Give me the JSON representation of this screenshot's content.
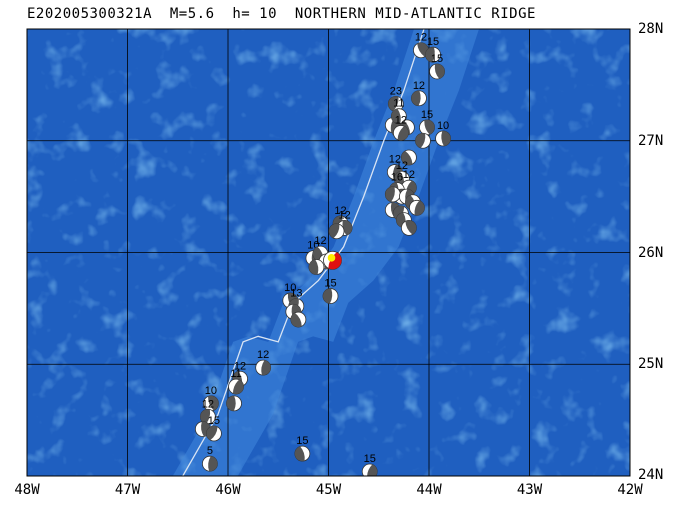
{
  "title": "E202005300321A  M=5.6  h= 10  NORTHERN MID-ATLANTIC RIDGE",
  "map": {
    "lon_range": [
      -48,
      -42
    ],
    "lat_range": [
      24,
      28
    ],
    "lon_labels": [
      "48W",
      "47W",
      "46W",
      "45W",
      "44W",
      "43W",
      "42W"
    ],
    "lat_labels": [
      "28N",
      "27N",
      "26N",
      "25N",
      "24N"
    ],
    "colors": {
      "ocean": "#1f5fc0",
      "ocean_light": "#2f78d6",
      "ridge": "#3f86dc",
      "grid": "#000000",
      "plate_boundary": "#d8e4f4",
      "event_main": "#e01010",
      "epicenter": "#ffee00"
    },
    "plate_boundary": [
      [
        -46.45,
        24.0
      ],
      [
        -46.1,
        24.55
      ],
      [
        -45.85,
        25.2
      ],
      [
        -45.7,
        25.25
      ],
      [
        -45.5,
        25.2
      ],
      [
        -45.35,
        25.55
      ],
      [
        -45.1,
        25.75
      ],
      [
        -44.85,
        26.05
      ],
      [
        -44.65,
        26.5
      ],
      [
        -44.45,
        27.0
      ],
      [
        -44.25,
        27.45
      ],
      [
        -44.05,
        28.0
      ]
    ]
  },
  "events": [
    {
      "lon": -44.08,
      "lat": 27.81,
      "label": "12"
    },
    {
      "lon": -43.96,
      "lat": 27.77,
      "label": "15"
    },
    {
      "lon": -43.92,
      "lat": 27.62,
      "label": "15"
    },
    {
      "lon": -44.33,
      "lat": 27.33,
      "label": "23"
    },
    {
      "lon": -44.3,
      "lat": 27.1,
      "label": ""
    },
    {
      "lon": -44.22,
      "lat": 27.12,
      "label": ""
    },
    {
      "lon": -44.36,
      "lat": 27.14,
      "label": ""
    },
    {
      "lon": -44.3,
      "lat": 27.22,
      "label": "11"
    },
    {
      "lon": -44.28,
      "lat": 27.07,
      "label": "12"
    },
    {
      "lon": -44.1,
      "lat": 27.38,
      "label": "12"
    },
    {
      "lon": -44.02,
      "lat": 27.12,
      "label": "15"
    },
    {
      "lon": -44.06,
      "lat": 27.0,
      "label": ""
    },
    {
      "lon": -43.86,
      "lat": 27.02,
      "label": "10"
    },
    {
      "lon": -44.2,
      "lat": 26.85,
      "label": ""
    },
    {
      "lon": -44.34,
      "lat": 26.72,
      "label": "12"
    },
    {
      "lon": -44.27,
      "lat": 26.66,
      "label": "12"
    },
    {
      "lon": -44.2,
      "lat": 26.58,
      "label": "12"
    },
    {
      "lon": -44.32,
      "lat": 26.56,
      "label": "16"
    },
    {
      "lon": -44.27,
      "lat": 26.5,
      "label": ""
    },
    {
      "lon": -44.36,
      "lat": 26.52,
      "label": ""
    },
    {
      "lon": -44.36,
      "lat": 26.38,
      "label": ""
    },
    {
      "lon": -44.28,
      "lat": 26.35,
      "label": ""
    },
    {
      "lon": -44.22,
      "lat": 26.5,
      "label": ""
    },
    {
      "lon": -44.16,
      "lat": 26.45,
      "label": ""
    },
    {
      "lon": -44.12,
      "lat": 26.4,
      "label": ""
    },
    {
      "lon": -44.25,
      "lat": 26.29,
      "label": ""
    },
    {
      "lon": -44.2,
      "lat": 26.22,
      "label": ""
    },
    {
      "lon": -44.88,
      "lat": 26.26,
      "label": "12"
    },
    {
      "lon": -44.84,
      "lat": 26.22,
      "label": "12"
    },
    {
      "lon": -44.92,
      "lat": 26.19,
      "label": ""
    },
    {
      "lon": -45.15,
      "lat": 25.95,
      "label": "10"
    },
    {
      "lon": -45.08,
      "lat": 25.99,
      "label": "12"
    },
    {
      "lon": -45.02,
      "lat": 25.92,
      "label": ""
    },
    {
      "lon": -45.12,
      "lat": 25.87,
      "label": ""
    },
    {
      "lon": -44.96,
      "lat": 25.93,
      "label": "",
      "main": true
    },
    {
      "lon": -44.98,
      "lat": 25.61,
      "label": "15"
    },
    {
      "lon": -45.38,
      "lat": 25.57,
      "label": "10"
    },
    {
      "lon": -45.32,
      "lat": 25.52,
      "label": "13"
    },
    {
      "lon": -45.35,
      "lat": 25.47,
      "label": ""
    },
    {
      "lon": -45.3,
      "lat": 25.4,
      "label": ""
    },
    {
      "lon": -45.65,
      "lat": 24.97,
      "label": "12"
    },
    {
      "lon": -45.88,
      "lat": 24.87,
      "label": "12"
    },
    {
      "lon": -45.92,
      "lat": 24.8,
      "label": "11"
    },
    {
      "lon": -45.94,
      "lat": 24.65,
      "label": ""
    },
    {
      "lon": -46.17,
      "lat": 24.65,
      "label": "10"
    },
    {
      "lon": -46.2,
      "lat": 24.53,
      "label": "12"
    },
    {
      "lon": -46.25,
      "lat": 24.42,
      "label": ""
    },
    {
      "lon": -46.14,
      "lat": 24.38,
      "label": "15"
    },
    {
      "lon": -46.18,
      "lat": 24.11,
      "label": "5"
    },
    {
      "lon": -45.26,
      "lat": 24.2,
      "label": "15"
    },
    {
      "lon": -44.59,
      "lat": 24.04,
      "label": "15"
    }
  ]
}
